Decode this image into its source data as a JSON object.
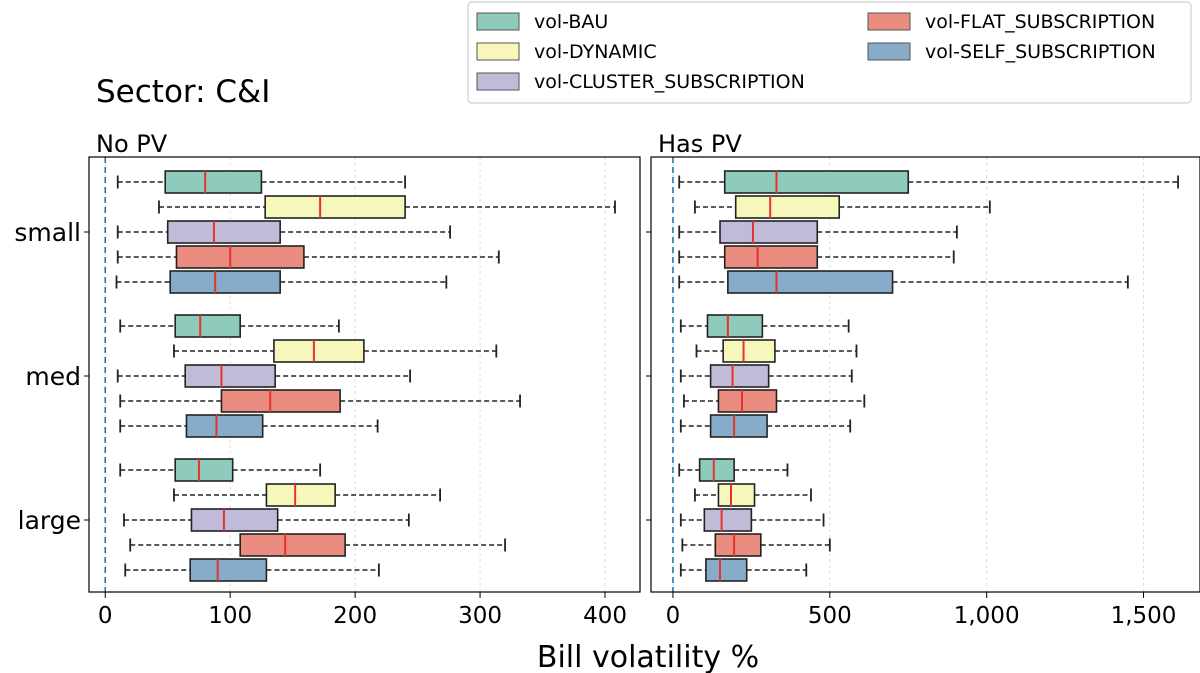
{
  "title": "Sector: C&I",
  "chart_data": {
    "type": "boxplot",
    "orientation": "horizontal",
    "title": "Sector: C&I",
    "xlabel": "Bill volatility %",
    "categories": [
      "small",
      "med",
      "large"
    ],
    "legend": {
      "placement": "top-right",
      "entries": [
        {
          "name": "vol-BAU",
          "color": "#8ecbbd"
        },
        {
          "name": "vol-DYNAMIC",
          "color": "#f7f7bb"
        },
        {
          "name": "vol-CLUSTER_SUBSCRIPTION",
          "color": "#bfbbd9"
        },
        {
          "name": "vol-FLAT_SUBSCRIPTION",
          "color": "#ea8c7f"
        },
        {
          "name": "vol-SELF_SUBSCRIPTION",
          "color": "#86acc9"
        }
      ]
    },
    "median_color": "#e8312a",
    "reference_line": {
      "x": 0,
      "color": "#1f77b4",
      "style": "dashed"
    },
    "grid": "x",
    "panels": [
      {
        "title": "No PV",
        "xlim": [
          -13,
          428
        ],
        "xticks": [
          0,
          100,
          200,
          300,
          400
        ],
        "xtick_labels": [
          "0",
          "100",
          "200",
          "300",
          "400"
        ],
        "groups": [
          {
            "category": "small",
            "boxes": [
              {
                "series": "vol-BAU",
                "whislo": 10,
                "q1": 48,
                "med": 80,
                "q3": 125,
                "whishi": 240
              },
              {
                "series": "vol-DYNAMIC",
                "whislo": 43,
                "q1": 128,
                "med": 172,
                "q3": 240,
                "whishi": 408
              },
              {
                "series": "vol-CLUSTER_SUBSCRIPTION",
                "whislo": 10,
                "q1": 50,
                "med": 87,
                "q3": 140,
                "whishi": 276
              },
              {
                "series": "vol-FLAT_SUBSCRIPTION",
                "whislo": 10,
                "q1": 57,
                "med": 100,
                "q3": 159,
                "whishi": 315
              },
              {
                "series": "vol-SELF_SUBSCRIPTION",
                "whislo": 9,
                "q1": 52,
                "med": 88,
                "q3": 140,
                "whishi": 273
              }
            ]
          },
          {
            "category": "med",
            "boxes": [
              {
                "series": "vol-BAU",
                "whislo": 12,
                "q1": 56,
                "med": 76,
                "q3": 108,
                "whishi": 187
              },
              {
                "series": "vol-DYNAMIC",
                "whislo": 55,
                "q1": 135,
                "med": 167,
                "q3": 207,
                "whishi": 313
              },
              {
                "series": "vol-CLUSTER_SUBSCRIPTION",
                "whislo": 10,
                "q1": 64,
                "med": 93,
                "q3": 136,
                "whishi": 244
              },
              {
                "series": "vol-FLAT_SUBSCRIPTION",
                "whislo": 12,
                "q1": 93,
                "med": 132,
                "q3": 188,
                "whishi": 332
              },
              {
                "series": "vol-SELF_SUBSCRIPTION",
                "whislo": 12,
                "q1": 65,
                "med": 89,
                "q3": 126,
                "whishi": 218
              }
            ]
          },
          {
            "category": "large",
            "boxes": [
              {
                "series": "vol-BAU",
                "whislo": 12,
                "q1": 56,
                "med": 75,
                "q3": 102,
                "whishi": 172
              },
              {
                "series": "vol-DYNAMIC",
                "whislo": 55,
                "q1": 129,
                "med": 152,
                "q3": 184,
                "whishi": 268
              },
              {
                "series": "vol-CLUSTER_SUBSCRIPTION",
                "whislo": 15,
                "q1": 69,
                "med": 95,
                "q3": 138,
                "whishi": 243
              },
              {
                "series": "vol-FLAT_SUBSCRIPTION",
                "whislo": 20,
                "q1": 108,
                "med": 144,
                "q3": 192,
                "whishi": 320
              },
              {
                "series": "vol-SELF_SUBSCRIPTION",
                "whislo": 16,
                "q1": 68,
                "med": 90,
                "q3": 129,
                "whishi": 219
              }
            ]
          }
        ]
      },
      {
        "title": "Has PV",
        "xlim": [
          -70,
          1680
        ],
        "xticks": [
          0,
          500,
          1000,
          1500
        ],
        "xtick_labels": [
          "0",
          "500",
          "1,000",
          "1,500"
        ],
        "groups": [
          {
            "category": "small",
            "boxes": [
              {
                "series": "vol-BAU",
                "whislo": 20,
                "q1": 165,
                "med": 330,
                "q3": 750,
                "whishi": 1610
              },
              {
                "series": "vol-DYNAMIC",
                "whislo": 70,
                "q1": 200,
                "med": 310,
                "q3": 530,
                "whishi": 1010
              },
              {
                "series": "vol-CLUSTER_SUBSCRIPTION",
                "whislo": 20,
                "q1": 150,
                "med": 255,
                "q3": 460,
                "whishi": 905
              },
              {
                "series": "vol-FLAT_SUBSCRIPTION",
                "whislo": 20,
                "q1": 165,
                "med": 270,
                "q3": 460,
                "whishi": 895
              },
              {
                "series": "vol-SELF_SUBSCRIPTION",
                "whislo": 20,
                "q1": 175,
                "med": 330,
                "q3": 700,
                "whishi": 1450
              }
            ]
          },
          {
            "category": "med",
            "boxes": [
              {
                "series": "vol-BAU",
                "whislo": 25,
                "q1": 110,
                "med": 175,
                "q3": 285,
                "whishi": 560
              },
              {
                "series": "vol-DYNAMIC",
                "whislo": 75,
                "q1": 160,
                "med": 225,
                "q3": 325,
                "whishi": 585
              },
              {
                "series": "vol-CLUSTER_SUBSCRIPTION",
                "whislo": 25,
                "q1": 120,
                "med": 190,
                "q3": 305,
                "whishi": 570
              },
              {
                "series": "vol-FLAT_SUBSCRIPTION",
                "whislo": 35,
                "q1": 145,
                "med": 220,
                "q3": 330,
                "whishi": 610
              },
              {
                "series": "vol-SELF_SUBSCRIPTION",
                "whislo": 25,
                "q1": 120,
                "med": 195,
                "q3": 300,
                "whishi": 565
              }
            ]
          },
          {
            "category": "large",
            "boxes": [
              {
                "series": "vol-BAU",
                "whislo": 20,
                "q1": 85,
                "med": 130,
                "q3": 195,
                "whishi": 365
              },
              {
                "series": "vol-DYNAMIC",
                "whislo": 70,
                "q1": 145,
                "med": 185,
                "q3": 260,
                "whishi": 440
              },
              {
                "series": "vol-CLUSTER_SUBSCRIPTION",
                "whislo": 25,
                "q1": 100,
                "med": 155,
                "q3": 250,
                "whishi": 480
              },
              {
                "series": "vol-FLAT_SUBSCRIPTION",
                "whislo": 30,
                "q1": 135,
                "med": 195,
                "q3": 280,
                "whishi": 500
              },
              {
                "series": "vol-SELF_SUBSCRIPTION",
                "whislo": 25,
                "q1": 105,
                "med": 150,
                "q3": 235,
                "whishi": 425
              }
            ]
          }
        ]
      }
    ]
  }
}
